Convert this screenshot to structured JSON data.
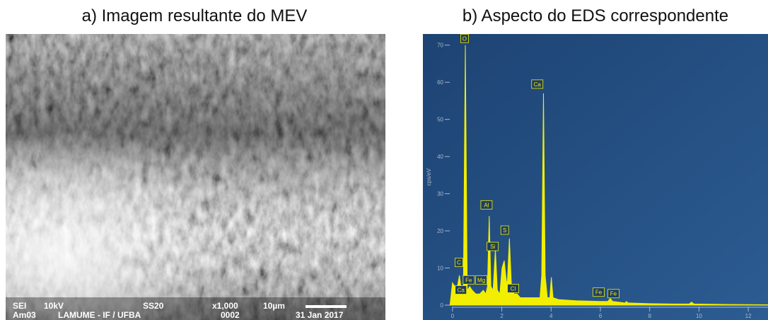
{
  "panel_a": {
    "title": "a) Imagem resultante do MEV",
    "info_bar": [
      [
        "SEI",
        "10kV",
        "SS20",
        "x1,000",
        "10µm"
      ],
      [
        "Am03",
        "LAMUME - IF / UFBA",
        "0002",
        "31 Jan 2017"
      ]
    ]
  },
  "chart_data": {
    "type": "spectrum",
    "title": "b) Aspecto do EDS correspondente",
    "y_label": "cps/eV",
    "color": "#f2ee00",
    "x": [
      -0.1,
      0.0,
      0.1,
      0.2,
      0.28,
      0.36,
      0.44,
      0.52,
      0.6,
      0.7,
      0.8,
      0.95,
      1.1,
      1.25,
      1.35,
      1.42,
      1.49,
      1.56,
      1.65,
      1.74,
      1.82,
      1.92,
      2.01,
      2.1,
      2.16,
      2.22,
      2.31,
      2.4,
      2.5,
      2.62,
      2.75,
      3.0,
      3.3,
      3.55,
      3.62,
      3.69,
      3.76,
      3.85,
      3.95,
      4.01,
      4.08,
      4.3,
      5,
      6,
      6.3,
      6.4,
      6.5,
      7.0,
      7.06,
      7.12,
      8,
      9,
      9.6,
      9.7,
      9.8,
      11,
      12.8
    ],
    "values": [
      0,
      6,
      5,
      5,
      8,
      4,
      3,
      70,
      4,
      5,
      4,
      3,
      3,
      4,
      3,
      5,
      24,
      5,
      4,
      15,
      4,
      3,
      10,
      12,
      8,
      5,
      18,
      4,
      3,
      3,
      2,
      2,
      2,
      2,
      8,
      57,
      8,
      2,
      2,
      7.5,
      2,
      1.5,
      1.2,
      1,
      1,
      1.8,
      1,
      0.6,
      1,
      0.6,
      0.4,
      0.3,
      0.3,
      0.8,
      0.3,
      0.2,
      0.1
    ],
    "xlim": [
      -1.2,
      12.8
    ],
    "ylim": [
      -4,
      73
    ],
    "xticks": [
      0,
      2,
      4,
      6,
      8,
      10,
      12
    ],
    "yticks": [
      0,
      10,
      20,
      30,
      40,
      50,
      60,
      70
    ],
    "annotations": [
      {
        "text": "O",
        "x": 0.49,
        "y": 71.8
      },
      {
        "text": "Ca",
        "x": 3.44,
        "y": 59.5
      },
      {
        "text": "Al",
        "x": 1.38,
        "y": 27
      },
      {
        "text": "S",
        "x": 2.12,
        "y": 20.2
      },
      {
        "text": "Si",
        "x": 1.63,
        "y": 15.8
      },
      {
        "text": "C",
        "x": 0.26,
        "y": 11.5
      },
      {
        "text": "Fe",
        "x": 0.66,
        "y": 6.8
      },
      {
        "text": "Mg",
        "x": 1.17,
        "y": 6.8
      },
      {
        "text": "Ca",
        "x": 0.34,
        "y": 4.1
      },
      {
        "text": "Cl",
        "x": 2.46,
        "y": 4.5
      },
      {
        "text": "Fe",
        "x": 5.93,
        "y": 3.5
      },
      {
        "text": "Fe",
        "x": 6.53,
        "y": 3.1
      }
    ]
  }
}
